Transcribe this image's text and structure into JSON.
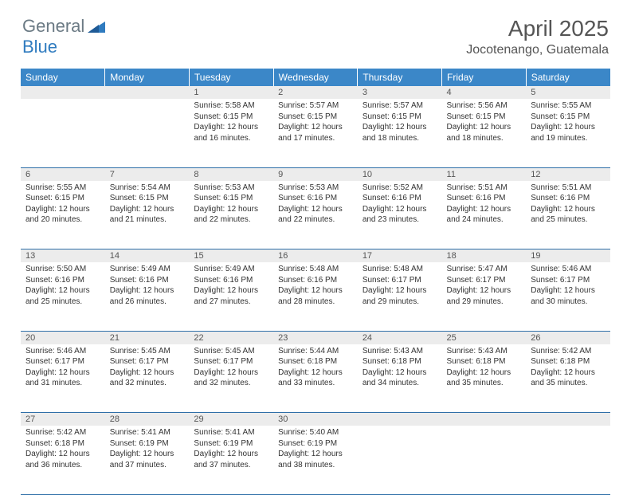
{
  "logo": {
    "general": "General",
    "blue": "Blue",
    "shape_color": "#2f7bbf"
  },
  "title": "April 2025",
  "location": "Jocotenango, Guatemala",
  "colors": {
    "header_bg": "#3b87c8",
    "header_text": "#ffffff",
    "daynum_bg": "#ececec",
    "row_divider": "#2f6fa8",
    "text": "#333333"
  },
  "weekdays": [
    "Sunday",
    "Monday",
    "Tuesday",
    "Wednesday",
    "Thursday",
    "Friday",
    "Saturday"
  ],
  "weeks": [
    {
      "nums": [
        "",
        "",
        "1",
        "2",
        "3",
        "4",
        "5"
      ],
      "cells": [
        null,
        null,
        {
          "sunrise": "Sunrise: 5:58 AM",
          "sunset": "Sunset: 6:15 PM",
          "d1": "Daylight: 12 hours",
          "d2": "and 16 minutes."
        },
        {
          "sunrise": "Sunrise: 5:57 AM",
          "sunset": "Sunset: 6:15 PM",
          "d1": "Daylight: 12 hours",
          "d2": "and 17 minutes."
        },
        {
          "sunrise": "Sunrise: 5:57 AM",
          "sunset": "Sunset: 6:15 PM",
          "d1": "Daylight: 12 hours",
          "d2": "and 18 minutes."
        },
        {
          "sunrise": "Sunrise: 5:56 AM",
          "sunset": "Sunset: 6:15 PM",
          "d1": "Daylight: 12 hours",
          "d2": "and 18 minutes."
        },
        {
          "sunrise": "Sunrise: 5:55 AM",
          "sunset": "Sunset: 6:15 PM",
          "d1": "Daylight: 12 hours",
          "d2": "and 19 minutes."
        }
      ]
    },
    {
      "nums": [
        "6",
        "7",
        "8",
        "9",
        "10",
        "11",
        "12"
      ],
      "cells": [
        {
          "sunrise": "Sunrise: 5:55 AM",
          "sunset": "Sunset: 6:15 PM",
          "d1": "Daylight: 12 hours",
          "d2": "and 20 minutes."
        },
        {
          "sunrise": "Sunrise: 5:54 AM",
          "sunset": "Sunset: 6:15 PM",
          "d1": "Daylight: 12 hours",
          "d2": "and 21 minutes."
        },
        {
          "sunrise": "Sunrise: 5:53 AM",
          "sunset": "Sunset: 6:15 PM",
          "d1": "Daylight: 12 hours",
          "d2": "and 22 minutes."
        },
        {
          "sunrise": "Sunrise: 5:53 AM",
          "sunset": "Sunset: 6:16 PM",
          "d1": "Daylight: 12 hours",
          "d2": "and 22 minutes."
        },
        {
          "sunrise": "Sunrise: 5:52 AM",
          "sunset": "Sunset: 6:16 PM",
          "d1": "Daylight: 12 hours",
          "d2": "and 23 minutes."
        },
        {
          "sunrise": "Sunrise: 5:51 AM",
          "sunset": "Sunset: 6:16 PM",
          "d1": "Daylight: 12 hours",
          "d2": "and 24 minutes."
        },
        {
          "sunrise": "Sunrise: 5:51 AM",
          "sunset": "Sunset: 6:16 PM",
          "d1": "Daylight: 12 hours",
          "d2": "and 25 minutes."
        }
      ]
    },
    {
      "nums": [
        "13",
        "14",
        "15",
        "16",
        "17",
        "18",
        "19"
      ],
      "cells": [
        {
          "sunrise": "Sunrise: 5:50 AM",
          "sunset": "Sunset: 6:16 PM",
          "d1": "Daylight: 12 hours",
          "d2": "and 25 minutes."
        },
        {
          "sunrise": "Sunrise: 5:49 AM",
          "sunset": "Sunset: 6:16 PM",
          "d1": "Daylight: 12 hours",
          "d2": "and 26 minutes."
        },
        {
          "sunrise": "Sunrise: 5:49 AM",
          "sunset": "Sunset: 6:16 PM",
          "d1": "Daylight: 12 hours",
          "d2": "and 27 minutes."
        },
        {
          "sunrise": "Sunrise: 5:48 AM",
          "sunset": "Sunset: 6:16 PM",
          "d1": "Daylight: 12 hours",
          "d2": "and 28 minutes."
        },
        {
          "sunrise": "Sunrise: 5:48 AM",
          "sunset": "Sunset: 6:17 PM",
          "d1": "Daylight: 12 hours",
          "d2": "and 29 minutes."
        },
        {
          "sunrise": "Sunrise: 5:47 AM",
          "sunset": "Sunset: 6:17 PM",
          "d1": "Daylight: 12 hours",
          "d2": "and 29 minutes."
        },
        {
          "sunrise": "Sunrise: 5:46 AM",
          "sunset": "Sunset: 6:17 PM",
          "d1": "Daylight: 12 hours",
          "d2": "and 30 minutes."
        }
      ]
    },
    {
      "nums": [
        "20",
        "21",
        "22",
        "23",
        "24",
        "25",
        "26"
      ],
      "cells": [
        {
          "sunrise": "Sunrise: 5:46 AM",
          "sunset": "Sunset: 6:17 PM",
          "d1": "Daylight: 12 hours",
          "d2": "and 31 minutes."
        },
        {
          "sunrise": "Sunrise: 5:45 AM",
          "sunset": "Sunset: 6:17 PM",
          "d1": "Daylight: 12 hours",
          "d2": "and 32 minutes."
        },
        {
          "sunrise": "Sunrise: 5:45 AM",
          "sunset": "Sunset: 6:17 PM",
          "d1": "Daylight: 12 hours",
          "d2": "and 32 minutes."
        },
        {
          "sunrise": "Sunrise: 5:44 AM",
          "sunset": "Sunset: 6:18 PM",
          "d1": "Daylight: 12 hours",
          "d2": "and 33 minutes."
        },
        {
          "sunrise": "Sunrise: 5:43 AM",
          "sunset": "Sunset: 6:18 PM",
          "d1": "Daylight: 12 hours",
          "d2": "and 34 minutes."
        },
        {
          "sunrise": "Sunrise: 5:43 AM",
          "sunset": "Sunset: 6:18 PM",
          "d1": "Daylight: 12 hours",
          "d2": "and 35 minutes."
        },
        {
          "sunrise": "Sunrise: 5:42 AM",
          "sunset": "Sunset: 6:18 PM",
          "d1": "Daylight: 12 hours",
          "d2": "and 35 minutes."
        }
      ]
    },
    {
      "nums": [
        "27",
        "28",
        "29",
        "30",
        "",
        "",
        ""
      ],
      "cells": [
        {
          "sunrise": "Sunrise: 5:42 AM",
          "sunset": "Sunset: 6:18 PM",
          "d1": "Daylight: 12 hours",
          "d2": "and 36 minutes."
        },
        {
          "sunrise": "Sunrise: 5:41 AM",
          "sunset": "Sunset: 6:19 PM",
          "d1": "Daylight: 12 hours",
          "d2": "and 37 minutes."
        },
        {
          "sunrise": "Sunrise: 5:41 AM",
          "sunset": "Sunset: 6:19 PM",
          "d1": "Daylight: 12 hours",
          "d2": "and 37 minutes."
        },
        {
          "sunrise": "Sunrise: 5:40 AM",
          "sunset": "Sunset: 6:19 PM",
          "d1": "Daylight: 12 hours",
          "d2": "and 38 minutes."
        },
        null,
        null,
        null
      ]
    }
  ]
}
